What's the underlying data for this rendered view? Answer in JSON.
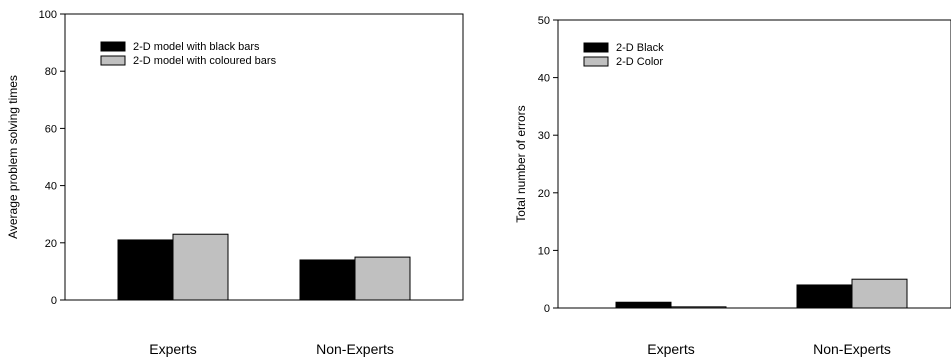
{
  "chart_data": [
    {
      "type": "bar",
      "title": "",
      "xlabel": "",
      "ylabel": "Average problem solving times",
      "ylim": [
        0,
        100
      ],
      "yticks": [
        0,
        20,
        40,
        60,
        80,
        100
      ],
      "categories": [
        "Experts",
        "Non-Experts"
      ],
      "series": [
        {
          "name": "2-D model with black bars",
          "color": "#000000",
          "values": [
            21,
            14
          ]
        },
        {
          "name": "2-D model with coloured bars",
          "color": "#c0c0c0",
          "values": [
            23,
            15
          ]
        }
      ],
      "legend": "top-left",
      "grid": false
    },
    {
      "type": "bar",
      "title": "",
      "xlabel": "",
      "ylabel": "Total number of errors",
      "ylim": [
        0,
        50
      ],
      "yticks": [
        0,
        10,
        20,
        30,
        40,
        50
      ],
      "categories": [
        "Experts",
        "Non-Experts"
      ],
      "series": [
        {
          "name": "2-D Black",
          "color": "#000000",
          "values": [
            1,
            4
          ]
        },
        {
          "name": "2-D Color",
          "color": "#c0c0c0",
          "values": [
            0.2,
            5
          ]
        }
      ],
      "legend": "top-left",
      "grid": false
    }
  ]
}
